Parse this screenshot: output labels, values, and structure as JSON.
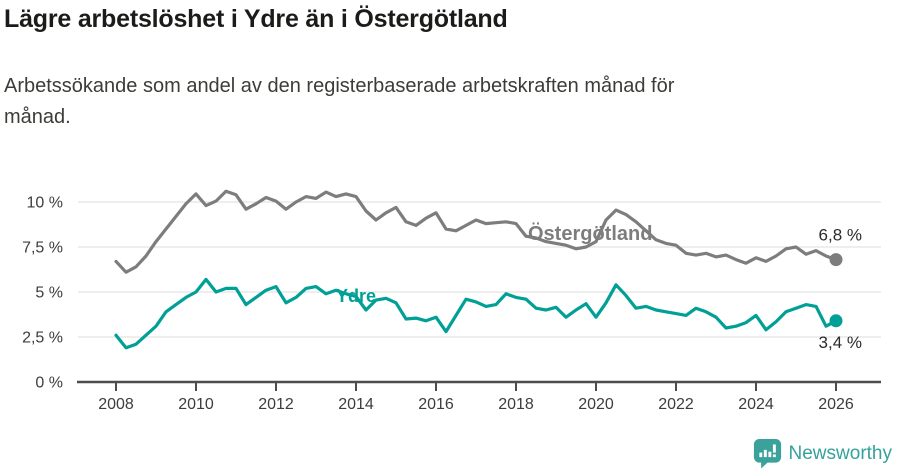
{
  "header": {
    "title": "Lägre arbetslöshet i Ydre än i Östergötland",
    "subtitle_lines": [
      "Arbetssökande som andel av den registerbaserade arbetskraften månad för",
      "månad."
    ]
  },
  "footer": {
    "brand": "Newsworthy",
    "logo_icon": "bar-chart-speech-bubble-icon",
    "brand_color": "#35a19b"
  },
  "chart_data": {
    "type": "line",
    "title": "Lägre arbetslöshet i Ydre än i Östergötland",
    "subtitle": "Arbetssökande som andel av den registerbaserade arbetskraften månad för månad.",
    "xlabel": "",
    "ylabel": "",
    "x_start": 2008.0,
    "x_step": 0.25,
    "x_end": 2026.0,
    "xlim": [
      2007.1,
      2027.1
    ],
    "ylim": [
      0,
      11.2
    ],
    "grid": "horizontal",
    "legend_position": "inline-labels",
    "x_ticks": [
      2008,
      2010,
      2012,
      2014,
      2016,
      2018,
      2020,
      2022,
      2024,
      2026
    ],
    "y_ticks": [
      {
        "value": 0,
        "label": "0 %"
      },
      {
        "value": 2.5,
        "label": "2,5 %"
      },
      {
        "value": 5,
        "label": "5 %"
      },
      {
        "value": 7.5,
        "label": "7,5 %"
      },
      {
        "value": 10,
        "label": "10 %"
      }
    ],
    "series": [
      {
        "name": "Östergötland",
        "color": "#7d7d7d",
        "end_value": 6.8,
        "end_label": "6,8 %",
        "label_pos": {
          "x": 2018.3,
          "y": 7.9
        },
        "label_font_size": 20,
        "end_label_offset": [
          26,
          -19
        ],
        "values": [
          6.7,
          6.1,
          6.4,
          7.0,
          7.8,
          8.5,
          9.2,
          9.9,
          10.45,
          9.8,
          10.05,
          10.6,
          10.4,
          9.6,
          9.9,
          10.25,
          10.05,
          9.6,
          10.0,
          10.3,
          10.2,
          10.55,
          10.3,
          10.45,
          10.3,
          9.5,
          9.0,
          9.4,
          9.7,
          8.9,
          8.7,
          9.1,
          9.4,
          8.5,
          8.4,
          8.7,
          9.0,
          8.8,
          8.85,
          8.9,
          8.8,
          8.1,
          8.0,
          7.8,
          7.7,
          7.6,
          7.4,
          7.5,
          7.8,
          9.0,
          9.55,
          9.3,
          8.9,
          8.4,
          7.9,
          7.7,
          7.6,
          7.15,
          7.05,
          7.15,
          6.95,
          7.05,
          6.8,
          6.6,
          6.9,
          6.7,
          7.0,
          7.4,
          7.5,
          7.1,
          7.3,
          7.0,
          6.8
        ]
      },
      {
        "name": "Ydre",
        "color": "#00a096",
        "end_value": 3.4,
        "end_label": "3,4 %",
        "label_pos": {
          "x": 2013.5,
          "y": 4.45
        },
        "label_font_size": 18,
        "end_label_offset": [
          26,
          27
        ],
        "values": [
          2.6,
          1.9,
          2.1,
          2.6,
          3.1,
          3.9,
          4.3,
          4.7,
          5.0,
          5.7,
          5.0,
          5.2,
          5.2,
          4.3,
          4.7,
          5.1,
          5.3,
          4.4,
          4.7,
          5.2,
          5.3,
          4.9,
          5.1,
          4.9,
          4.75,
          4.0,
          4.55,
          4.65,
          4.4,
          3.5,
          3.55,
          3.4,
          3.6,
          2.8,
          3.7,
          4.6,
          4.45,
          4.2,
          4.3,
          4.9,
          4.7,
          4.6,
          4.1,
          4.0,
          4.15,
          3.6,
          4.0,
          4.35,
          3.6,
          4.4,
          5.4,
          4.8,
          4.1,
          4.2,
          4.0,
          3.9,
          3.8,
          3.7,
          4.1,
          3.9,
          3.6,
          3.0,
          3.1,
          3.3,
          3.7,
          2.9,
          3.35,
          3.9,
          4.1,
          4.3,
          4.2,
          3.1,
          3.4
        ]
      }
    ]
  }
}
